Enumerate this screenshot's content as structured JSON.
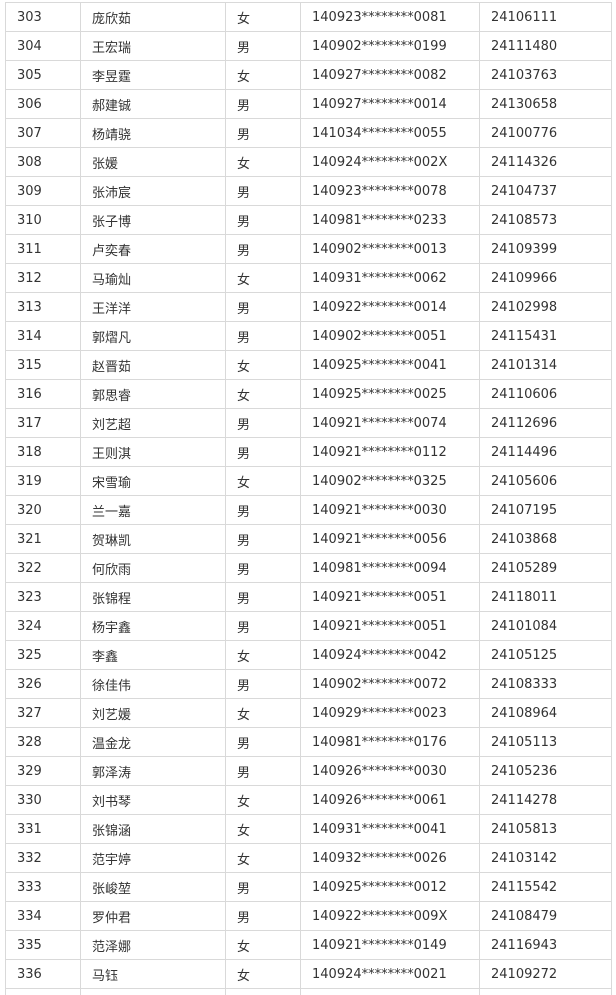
{
  "table": {
    "rows": [
      [
        "303",
        "庞欣茹",
        "女",
        "140923********0081",
        "24106111"
      ],
      [
        "304",
        "王宏瑞",
        "男",
        "140902********0199",
        "24111480"
      ],
      [
        "305",
        "李昱霆",
        "女",
        "140927********0082",
        "24103763"
      ],
      [
        "306",
        "郝建铖",
        "男",
        "140927********0014",
        "24130658"
      ],
      [
        "307",
        "杨靖骁",
        "男",
        "141034********0055",
        "24100776"
      ],
      [
        "308",
        "张媛",
        "女",
        "140924********002X",
        "24114326"
      ],
      [
        "309",
        "张沛宸",
        "男",
        "140923********0078",
        "24104737"
      ],
      [
        "310",
        "张子博",
        "男",
        "140981********0233",
        "24108573"
      ],
      [
        "311",
        "卢奕春",
        "男",
        "140902********0013",
        "24109399"
      ],
      [
        "312",
        "马瑜灿",
        "女",
        "140931********0062",
        "24109966"
      ],
      [
        "313",
        "王洋洋",
        "男",
        "140922********0014",
        "24102998"
      ],
      [
        "314",
        "郭熠凡",
        "男",
        "140902********0051",
        "24115431"
      ],
      [
        "315",
        "赵晋茹",
        "女",
        "140925********0041",
        "24101314"
      ],
      [
        "316",
        "郭思睿",
        "女",
        "140925********0025",
        "24110606"
      ],
      [
        "317",
        "刘艺超",
        "男",
        "140921********0074",
        "24112696"
      ],
      [
        "318",
        "王则淇",
        "男",
        "140921********0112",
        "24114496"
      ],
      [
        "319",
        "宋雪瑜",
        "女",
        "140902********0325",
        "24105606"
      ],
      [
        "320",
        "兰一嘉",
        "男",
        "140921********0030",
        "24107195"
      ],
      [
        "321",
        "贺琳凯",
        "男",
        "140921********0056",
        "24103868"
      ],
      [
        "322",
        "何欣雨",
        "男",
        "140981********0094",
        "24105289"
      ],
      [
        "323",
        "张锦程",
        "男",
        "140921********0051",
        "24118011"
      ],
      [
        "324",
        "杨宇鑫",
        "男",
        "140921********0051",
        "24101084"
      ],
      [
        "325",
        "李鑫",
        "女",
        "140924********0042",
        "24105125"
      ],
      [
        "326",
        "徐佳伟",
        "男",
        "140902********0072",
        "24108333"
      ],
      [
        "327",
        "刘艺媛",
        "女",
        "140929********0023",
        "24108964"
      ],
      [
        "328",
        "温金龙",
        "男",
        "140981********0176",
        "24105113"
      ],
      [
        "329",
        "郭泽涛",
        "男",
        "140926********0030",
        "24105236"
      ],
      [
        "330",
        "刘书琴",
        "女",
        "140926********0061",
        "24114278"
      ],
      [
        "331",
        "张锦涵",
        "女",
        "140931********0041",
        "24105813"
      ],
      [
        "332",
        "范宇婷",
        "女",
        "140932********0026",
        "24103142"
      ],
      [
        "333",
        "张峻堃",
        "男",
        "140925********0012",
        "24115542"
      ],
      [
        "334",
        "罗仲君",
        "男",
        "140922********009X",
        "24108479"
      ],
      [
        "335",
        "范泽娜",
        "女",
        "140921********0149",
        "24116943"
      ],
      [
        "336",
        "马钰",
        "女",
        "140924********0021",
        "24109272"
      ]
    ]
  }
}
